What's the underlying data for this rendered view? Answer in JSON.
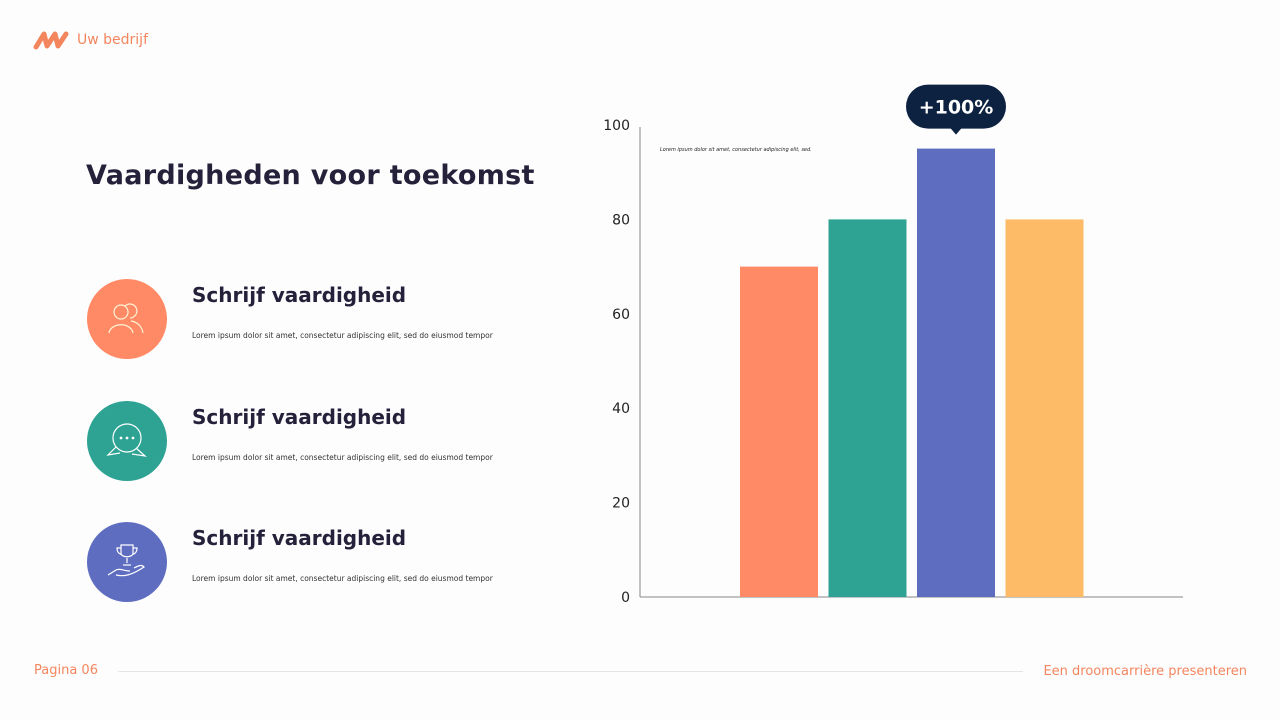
{
  "header": {
    "company": "Uw bedrijf",
    "logo_icon": "zigzag-logo-icon"
  },
  "title": "Vaardigheden voor toekomst",
  "items": [
    {
      "title": "Schrijf vaardigheid",
      "description": "Lorem ipsum dolor sit amet, consectetur adipiscing elit, sed do eiusmod tempor",
      "icon": "users-icon",
      "color": "#ff8a65"
    },
    {
      "title": "Schrijf vaardigheid",
      "description": "Lorem ipsum dolor sit amet, consectetur adipiscing elit, sed do eiusmod tempor",
      "icon": "chat-bubbles-icon",
      "color": "#2ea394"
    },
    {
      "title": "Schrijf vaardigheid",
      "description": "Lorem ipsum dolor sit amet, consectetur adipiscing elit, sed do eiusmod tempor",
      "icon": "trophy-hand-icon",
      "color": "#5f6dc1"
    }
  ],
  "footer": {
    "page": "Pagina 06",
    "tagline": "Een droomcarrière presenteren"
  },
  "chart_data": {
    "type": "bar",
    "values": [
      70,
      80,
      95,
      80
    ],
    "colors": [
      "#ff8a65",
      "#2ea394",
      "#5f6dc1",
      "#fdbb67"
    ],
    "ylim": [
      0,
      100
    ],
    "yticks": [
      0,
      20,
      40,
      60,
      80,
      100
    ],
    "grid": false,
    "annotation": {
      "text": "+100%",
      "bar_index": 2,
      "color": "#0d2240"
    },
    "note": "Lorem ipsum dolor sit amet, consectetur adipiscing elit, sed."
  }
}
